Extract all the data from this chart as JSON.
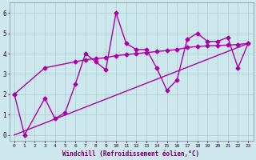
{
  "xlabel": "Windchill (Refroidissement éolien,°C)",
  "background_color": "#cce8ec",
  "grid_color": "#aacccc",
  "line_color": "#aa00aa",
  "xlim": [
    -0.5,
    23.5
  ],
  "ylim": [
    -0.3,
    6.5
  ],
  "xticks": [
    0,
    1,
    2,
    3,
    4,
    5,
    6,
    7,
    8,
    9,
    10,
    11,
    12,
    13,
    14,
    15,
    16,
    17,
    18,
    19,
    20,
    21,
    22,
    23
  ],
  "yticks": [
    0,
    1,
    2,
    3,
    4,
    5,
    6
  ],
  "series1_x": [
    0,
    1,
    3,
    4,
    5,
    6,
    7,
    8,
    9,
    10,
    11,
    12,
    13,
    14,
    15,
    16,
    17,
    18,
    19,
    20,
    21,
    22,
    23
  ],
  "series1_y": [
    2.0,
    0.0,
    1.8,
    0.8,
    1.1,
    2.5,
    4.0,
    3.6,
    3.2,
    6.0,
    4.5,
    4.2,
    4.2,
    3.3,
    2.2,
    2.7,
    4.7,
    5.0,
    4.6,
    4.6,
    4.8,
    3.3,
    4.5
  ],
  "series2_x": [
    0,
    3,
    6,
    7,
    8,
    9,
    10,
    11,
    12,
    13,
    14,
    15,
    16,
    17,
    18,
    19,
    20,
    21,
    22,
    23
  ],
  "series2_y": [
    2.0,
    3.3,
    3.6,
    3.7,
    3.75,
    3.8,
    3.9,
    3.95,
    4.0,
    4.05,
    4.1,
    4.15,
    4.2,
    4.3,
    4.35,
    4.38,
    4.4,
    4.42,
    4.45,
    4.5
  ],
  "series3_x": [
    0,
    23
  ],
  "series3_y": [
    0.0,
    4.5
  ],
  "marker": "D",
  "markersize": 2.5,
  "linewidth": 1.0
}
